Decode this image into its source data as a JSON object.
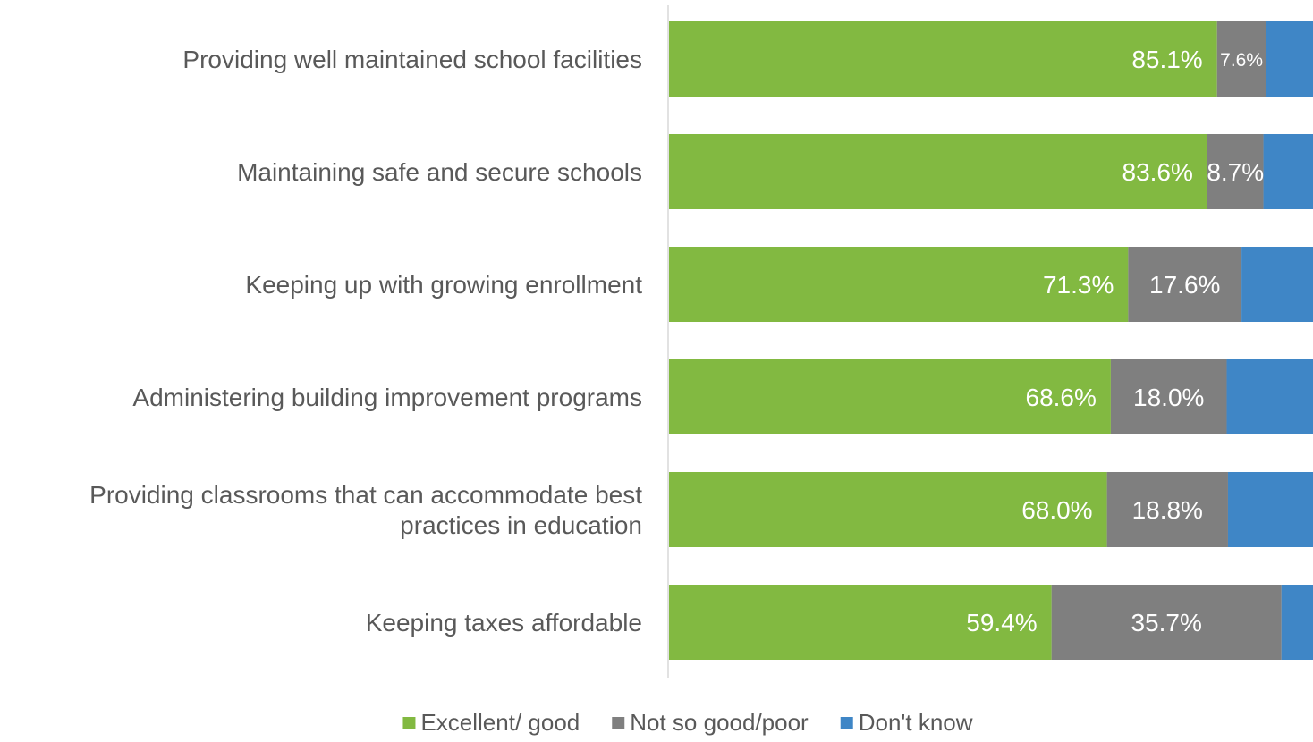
{
  "chart_data": {
    "type": "bar",
    "orientation": "horizontal",
    "stacked": true,
    "categories": [
      [
        "Providing well maintained school facilities"
      ],
      [
        "Maintaining safe and secure schools"
      ],
      [
        "Keeping up with growing enrollment"
      ],
      [
        "Administering building improvement programs"
      ],
      [
        "Providing classrooms that can accommodate best",
        "practices in education"
      ],
      [
        "Keeping taxes affordable"
      ]
    ],
    "series": [
      {
        "name": "Excellent/ good",
        "color": "#82b941",
        "values": [
          85.1,
          83.6,
          71.3,
          68.6,
          68.0,
          59.4
        ],
        "labels": [
          "85.1%",
          "83.6%",
          "71.3%",
          "68.6%",
          "68.0%",
          "59.4%"
        ]
      },
      {
        "name": "Not so good/poor",
        "color": "#7f7f7f",
        "values": [
          7.6,
          8.7,
          17.6,
          18.0,
          18.8,
          35.7
        ],
        "labels": [
          "7.6%",
          "8.7%",
          "17.6%",
          "18.0%",
          "18.8%",
          "35.7%"
        ]
      },
      {
        "name": "Don't know",
        "color": "#3f86c6",
        "values": [
          7.3,
          7.7,
          11.1,
          13.4,
          13.2,
          4.9
        ],
        "labels": []
      }
    ],
    "xlim": [
      0,
      100
    ],
    "grid": false,
    "legend_position": "bottom",
    "title": "",
    "xlabel": "",
    "ylabel": ""
  }
}
